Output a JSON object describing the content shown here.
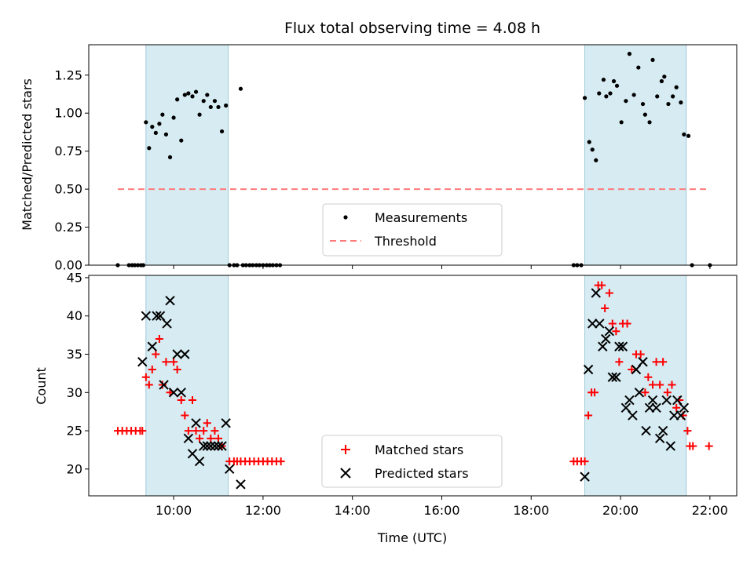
{
  "chart_data": [
    {
      "type": "scatter",
      "title": "Flux total observing time = 4.08 h",
      "xlabel": "",
      "ylabel": "Matched/Predicted stars",
      "xlim": [
        8.1,
        22.6
      ],
      "ylim": [
        0,
        1.45
      ],
      "yticks": [
        0,
        0.25,
        0.5,
        0.75,
        1.0,
        1.25
      ],
      "ytick_labels": [
        "0.00",
        "0.25",
        "0.50",
        "0.75",
        "1.00",
        "1.25"
      ],
      "xticks": [
        10,
        12,
        14,
        16,
        18,
        20,
        22
      ],
      "shaded_intervals": [
        [
          9.38,
          11.22
        ],
        [
          19.2,
          21.47
        ]
      ],
      "threshold": {
        "y": 0.5,
        "x": [
          8.75,
          22.0
        ],
        "color": "#ff7b7b"
      },
      "legend": {
        "position": "bottom-center",
        "entries": [
          "Measurements",
          "Threshold"
        ]
      },
      "series": [
        {
          "name": "Measurements",
          "marker": "dot",
          "color": "#000000",
          "x": [
            8.75,
            9.38,
            9.45,
            9.52,
            9.6,
            9.68,
            9.75,
            9.83,
            9.92,
            10.0,
            10.08,
            10.17,
            10.25,
            10.33,
            10.42,
            10.5,
            10.58,
            10.67,
            10.75,
            10.83,
            10.92,
            11.0,
            11.08,
            11.17,
            11.25,
            11.5,
            9.2,
            9.27,
            9.32,
            9.0,
            9.07,
            9.13,
            11.35,
            11.42,
            11.55,
            11.62,
            11.7,
            11.77,
            11.85,
            11.92,
            12.0,
            12.08,
            12.15,
            12.22,
            12.3,
            12.38,
            18.95,
            19.03,
            19.12,
            19.2,
            19.3,
            19.37,
            19.45,
            19.52,
            19.62,
            19.68,
            19.77,
            19.85,
            19.92,
            20.02,
            20.12,
            20.2,
            20.3,
            20.4,
            20.5,
            20.55,
            20.65,
            20.72,
            20.82,
            20.92,
            20.98,
            21.07,
            21.17,
            21.25,
            21.35,
            21.42,
            21.52,
            21.6,
            22.0
          ],
          "y": [
            0.0,
            0.94,
            0.77,
            0.91,
            0.87,
            0.93,
            0.99,
            0.86,
            0.71,
            0.97,
            1.09,
            0.82,
            1.12,
            1.13,
            1.11,
            1.14,
            0.99,
            1.08,
            1.12,
            1.04,
            1.08,
            1.04,
            0.88,
            1.05,
            0.0,
            1.16,
            0.0,
            0.0,
            0.0,
            0.0,
            0.0,
            0.0,
            0.0,
            0.0,
            0.0,
            0.0,
            0.0,
            0.0,
            0.0,
            0.0,
            0.0,
            0.0,
            0.0,
            0.0,
            0.0,
            0.0,
            0.0,
            0.0,
            0.0,
            1.1,
            0.81,
            0.76,
            0.69,
            1.13,
            1.22,
            1.11,
            1.13,
            1.21,
            1.18,
            0.94,
            1.08,
            1.39,
            1.12,
            1.3,
            1.06,
            0.99,
            0.94,
            1.35,
            1.11,
            1.21,
            1.24,
            1.06,
            1.11,
            1.17,
            1.07,
            0.86,
            0.85,
            0.0,
            0.0
          ]
        }
      ]
    },
    {
      "type": "scatter",
      "title": "",
      "xlabel": "Time (UTC)",
      "ylabel": "Count",
      "xlim": [
        8.1,
        22.6
      ],
      "ylim": [
        16.5,
        45.3
      ],
      "yticks": [
        20,
        25,
        30,
        35,
        40,
        45
      ],
      "ytick_labels": [
        "20",
        "25",
        "30",
        "35",
        "40",
        "45"
      ],
      "xticks": [
        10,
        12,
        14,
        16,
        18,
        20,
        22
      ],
      "xtick_labels": [
        "10:00",
        "12:00",
        "14:00",
        "16:00",
        "18:00",
        "20:00",
        "22:00"
      ],
      "shaded_intervals": [
        [
          9.38,
          11.22
        ],
        [
          19.2,
          21.47
        ]
      ],
      "legend": {
        "position": "bottom-center",
        "entries": [
          "Matched stars",
          "Predicted stars"
        ]
      },
      "series": [
        {
          "name": "Matched stars",
          "marker": "plus",
          "color": "#ff0000",
          "x": [
            8.75,
            8.85,
            8.95,
            9.05,
            9.15,
            9.25,
            9.3,
            9.38,
            9.45,
            9.52,
            9.6,
            9.68,
            9.75,
            9.83,
            9.92,
            10.0,
            10.08,
            10.17,
            10.25,
            10.33,
            10.42,
            10.5,
            10.58,
            10.67,
            10.75,
            10.83,
            10.92,
            11.0,
            11.08,
            11.25,
            11.35,
            11.42,
            11.5,
            11.6,
            11.7,
            11.8,
            11.9,
            12.0,
            12.1,
            12.2,
            12.3,
            12.4,
            18.95,
            19.03,
            19.12,
            19.2,
            19.28,
            19.35,
            19.42,
            19.5,
            19.58,
            19.65,
            19.75,
            19.82,
            19.9,
            19.97,
            20.05,
            20.15,
            20.25,
            20.35,
            20.45,
            20.55,
            20.62,
            20.72,
            20.8,
            20.88,
            20.95,
            21.05,
            21.15,
            21.25,
            21.32,
            21.4,
            21.5,
            21.55,
            21.62,
            21.98
          ],
          "y": [
            25,
            25,
            25,
            25,
            25,
            25,
            25,
            32,
            31,
            33,
            35,
            37,
            31,
            34,
            30,
            34,
            33,
            29,
            27,
            25,
            29,
            25,
            24,
            25,
            26,
            24,
            25,
            24,
            23,
            21,
            21,
            21,
            21,
            21,
            21,
            21,
            21,
            21,
            21,
            21,
            21,
            21,
            21,
            21,
            21,
            21,
            27,
            30,
            30,
            44,
            44,
            41,
            43,
            39,
            38,
            34,
            39,
            39,
            33,
            35,
            35,
            30,
            32,
            31,
            34,
            31,
            34,
            30,
            31,
            28,
            29,
            27,
            25,
            23,
            23,
            23
          ]
        },
        {
          "name": "Predicted stars",
          "marker": "x",
          "color": "#000000",
          "x": [
            9.3,
            9.38,
            9.52,
            9.62,
            9.7,
            9.78,
            9.85,
            9.92,
            10.0,
            10.08,
            10.17,
            10.25,
            10.33,
            10.42,
            10.5,
            10.58,
            10.67,
            10.75,
            10.83,
            10.92,
            11.0,
            11.08,
            11.17,
            11.25,
            11.5,
            19.2,
            19.28,
            19.37,
            19.45,
            19.53,
            19.6,
            19.67,
            19.75,
            19.82,
            19.9,
            19.97,
            20.05,
            20.12,
            20.2,
            20.27,
            20.35,
            20.42,
            20.5,
            20.57,
            20.65,
            20.72,
            20.8,
            20.88,
            20.95,
            21.03,
            21.12,
            21.2,
            21.27,
            21.35,
            21.42
          ],
          "y": [
            34,
            40,
            36,
            40,
            40,
            31,
            39,
            42,
            30,
            35,
            30,
            35,
            24,
            22,
            26,
            21,
            23,
            23,
            23,
            23,
            23,
            23,
            26,
            20,
            18,
            19,
            33,
            39,
            43,
            39,
            36,
            37,
            38,
            32,
            32,
            36,
            36,
            28,
            29,
            27,
            33,
            30,
            34,
            25,
            28,
            29,
            28,
            24,
            25,
            29,
            23,
            27,
            29,
            27,
            28
          ]
        }
      ]
    }
  ]
}
